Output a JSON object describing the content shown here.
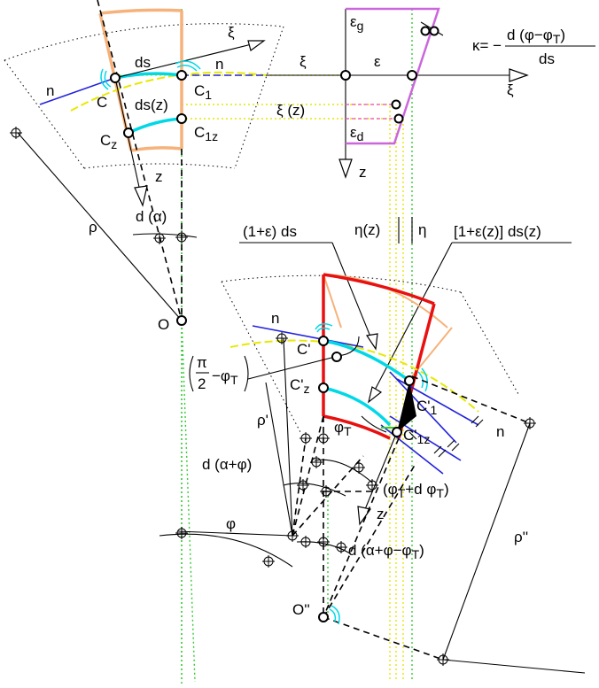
{
  "labels": {
    "xi_upper": "ξ",
    "n_left": "n",
    "n_mid": "n",
    "ds": "ds",
    "C": "C",
    "C1": "C",
    "C1_sub": "1",
    "ds_z": "ds(z)",
    "Cz": "C",
    "Cz_sub": "z",
    "C1z": "C",
    "C1z_sub": "1z",
    "z_left": "z",
    "d_alpha": "d (α)",
    "rho": "ρ",
    "O": "O",
    "xi_mid": "ξ",
    "xi_z": "ξ (z)",
    "eps_g": "ε",
    "eps_g_sub": "g",
    "eps": "ε",
    "eps_d": "ε",
    "eps_d_sub": "d",
    "xi_right": "ξ",
    "z_right": "z",
    "kappa_lhs": "κ= −",
    "kappa_num": "d (φ−φ",
    "kappa_num_sub": "T",
    "kappa_num_close": ")",
    "kappa_den": "ds",
    "eta_z": "η(z)",
    "eta": "η",
    "len_ds": "(1+ε) ds",
    "len_dsz": "[1+ε(z)] ds(z)",
    "n_def": "n",
    "C_prime": "C'",
    "Cz_prime": "C'",
    "Cz_prime_sub": "z",
    "pi_half_top": "π",
    "pi_half_bottom": "2",
    "minus_phiT": "−φ",
    "minus_phiT_sub": "T",
    "rho_prime": "ρ'",
    "phiT": "φ",
    "phiT_sub": "T",
    "C1_prime": "C'",
    "C1_prime_sub": "1",
    "C1z_prime": "C'",
    "C1z_prime_sub": "1z",
    "n_def_right": "n",
    "d_alpha_phi": "d (α+φ)",
    "phiT_dphiT": "(φ",
    "phiT_dphiT_sub": "T",
    "phiT_dphiT_rest": "+d φ",
    "phiT_dphiT_sub2": "T",
    "phiT_dphiT_close": ")",
    "z_def": "z",
    "phi": "φ",
    "d_alpha_phi_phiT": "d (α+φ−φ",
    "d_alpha_phi_phiT_sub": "T",
    "d_alpha_phi_phiT_close": ")",
    "rho_dd": "ρ''",
    "O_dd": "O''"
  },
  "colors": {
    "undeformed_element": "#f6b27a",
    "deformed_element": "#e81010",
    "fiber": "#00d8e8",
    "normal": "#2222dd",
    "strain_diagram": "#cc66dd",
    "guide_green": "#33cc33",
    "guide_yellow": "#e6e600"
  }
}
